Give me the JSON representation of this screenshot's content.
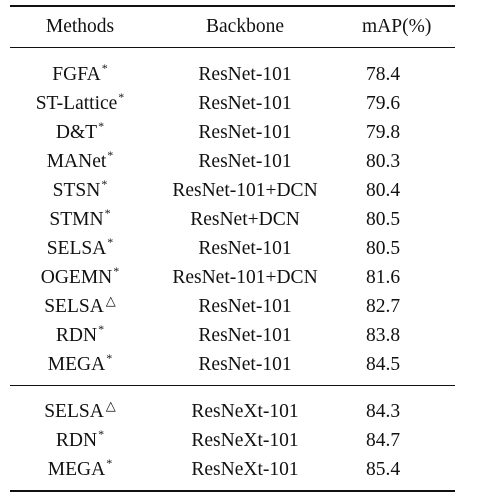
{
  "table": {
    "headers": {
      "method": "Methods",
      "backbone": "Backbone",
      "map": "mAP(%)"
    },
    "group1": [
      {
        "method": "FGFA",
        "mark": "*",
        "backbone": "ResNet-101",
        "map": "78.4"
      },
      {
        "method": "ST-Lattice",
        "mark": "*",
        "backbone": "ResNet-101",
        "map": "79.6"
      },
      {
        "method": "D&T",
        "mark": "*",
        "backbone": "ResNet-101",
        "map": "79.8"
      },
      {
        "method": "MANet",
        "mark": "*",
        "backbone": "ResNet-101",
        "map": "80.3"
      },
      {
        "method": "STSN",
        "mark": "*",
        "backbone": "ResNet-101+DCN",
        "map": "80.4"
      },
      {
        "method": "STMN",
        "mark": "*",
        "backbone": "ResNet+DCN",
        "map": "80.5"
      },
      {
        "method": "SELSA",
        "mark": "*",
        "backbone": "ResNet-101",
        "map": "80.5"
      },
      {
        "method": "OGEMN",
        "mark": "*",
        "backbone": "ResNet-101+DCN",
        "map": "81.6"
      },
      {
        "method": "SELSA",
        "mark": "△",
        "backbone": "ResNet-101",
        "map": "82.7"
      },
      {
        "method": "RDN",
        "mark": "*",
        "backbone": "ResNet-101",
        "map": "83.8"
      },
      {
        "method": "MEGA",
        "mark": "*",
        "backbone": "ResNet-101",
        "map": "84.5"
      }
    ],
    "group2": [
      {
        "method": "SELSA",
        "mark": "△",
        "backbone": "ResNeXt-101",
        "map": "84.3"
      },
      {
        "method": "RDN",
        "mark": "*",
        "backbone": "ResNeXt-101",
        "map": "84.7"
      },
      {
        "method": "MEGA",
        "mark": "*",
        "backbone": "ResNeXt-101",
        "map": "85.4"
      }
    ]
  }
}
